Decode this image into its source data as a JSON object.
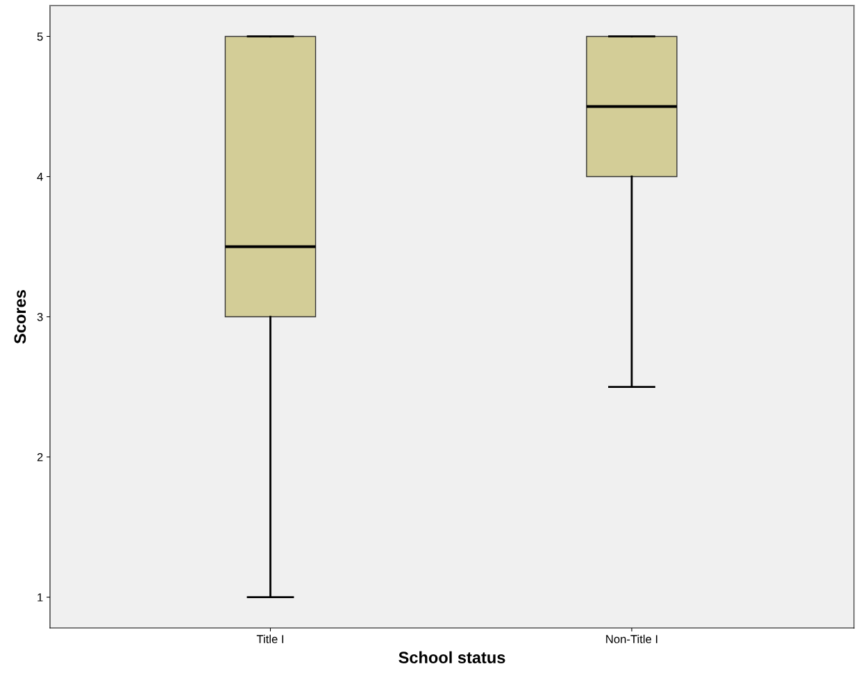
{
  "chart_data": {
    "type": "box",
    "xlabel": "School status",
    "ylabel": "Scores",
    "categories": [
      "Title I",
      "Non-Title I"
    ],
    "boxes": [
      {
        "low": 1,
        "q1": 3,
        "median": 3.5,
        "q3": 5,
        "high": 5
      },
      {
        "low": 2.5,
        "q1": 4,
        "median": 4.5,
        "q3": 5,
        "high": 5
      }
    ],
    "color": "#d3cd97",
    "ylim": [
      0.78,
      5.22
    ],
    "yticks": [
      1,
      2,
      3,
      4,
      5
    ],
    "grid": false
  }
}
